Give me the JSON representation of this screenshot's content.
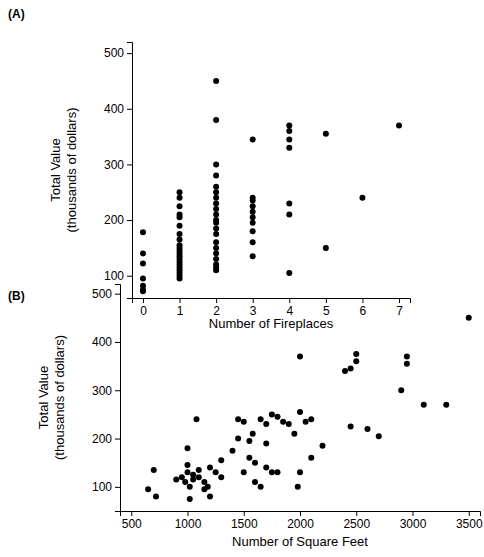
{
  "chart_data": [
    {
      "type": "scatter",
      "title": "(A)",
      "xlabel": "Number of Fireplaces",
      "ylabel": [
        "Total Value",
        "(thousands of dollars)"
      ],
      "x": [
        0,
        0,
        0,
        0,
        0,
        0,
        0,
        1,
        1,
        1,
        1,
        1,
        1,
        1,
        1,
        1,
        1,
        1,
        1,
        1,
        1,
        1,
        1,
        1,
        1,
        1,
        1,
        1,
        2,
        2,
        2,
        2,
        2,
        2,
        2,
        2,
        2,
        2,
        2,
        2,
        2,
        2,
        2,
        2,
        2,
        2,
        2,
        2,
        2,
        3,
        3,
        3,
        3,
        3,
        3,
        3,
        3,
        3,
        3,
        4,
        4,
        4,
        4,
        4,
        4,
        4,
        5,
        5,
        6,
        7
      ],
      "y": [
        178,
        140,
        122,
        95,
        82,
        75,
        72,
        250,
        240,
        225,
        210,
        205,
        190,
        175,
        165,
        155,
        150,
        145,
        140,
        135,
        130,
        125,
        120,
        115,
        110,
        105,
        100,
        95,
        450,
        380,
        300,
        280,
        260,
        250,
        240,
        230,
        220,
        210,
        200,
        195,
        185,
        175,
        160,
        150,
        140,
        130,
        120,
        115,
        110,
        345,
        240,
        235,
        225,
        215,
        205,
        195,
        180,
        160,
        135,
        370,
        360,
        345,
        330,
        230,
        210,
        105,
        355,
        150,
        240,
        370
      ],
      "xlim": [
        -0.3,
        7.3
      ],
      "ylim": [
        60,
        520
      ],
      "xticks": [
        0,
        1,
        2,
        3,
        4,
        5,
        6,
        7
      ],
      "yticks": [
        100,
        200,
        300,
        400,
        500
      ],
      "color": "#000000",
      "marker": "circle",
      "grid": false
    },
    {
      "type": "scatter",
      "title": "(B)",
      "xlabel": "Number of Square Feet",
      "ylabel": [
        "Total Value",
        "(thousands of dollars)"
      ],
      "x": [
        650,
        700,
        720,
        900,
        950,
        980,
        1000,
        1000,
        1000,
        1020,
        1020,
        1050,
        1050,
        1080,
        1100,
        1100,
        1150,
        1150,
        1180,
        1200,
        1200,
        1250,
        1300,
        1300,
        1400,
        1450,
        1450,
        1500,
        1500,
        1550,
        1550,
        1580,
        1600,
        1600,
        1650,
        1650,
        1700,
        1700,
        1700,
        1750,
        1750,
        1800,
        1800,
        1850,
        1900,
        1950,
        1980,
        2000,
        2000,
        2000,
        2050,
        2100,
        2100,
        2200,
        2400,
        2450,
        2450,
        2500,
        2500,
        2600,
        2700,
        2900,
        2950,
        2950,
        3100,
        3300,
        3500
      ],
      "y": [
        95,
        135,
        80,
        115,
        120,
        110,
        130,
        145,
        180,
        100,
        75,
        125,
        115,
        240,
        135,
        120,
        110,
        95,
        100,
        140,
        80,
        130,
        120,
        155,
        175,
        240,
        200,
        130,
        235,
        160,
        195,
        210,
        110,
        150,
        100,
        240,
        140,
        190,
        230,
        250,
        130,
        130,
        245,
        235,
        230,
        210,
        100,
        370,
        255,
        130,
        235,
        240,
        160,
        185,
        340,
        345,
        225,
        360,
        375,
        220,
        205,
        300,
        370,
        355,
        270,
        270,
        450
      ],
      "xlim": [
        400,
        3600
      ],
      "ylim": [
        50,
        520
      ],
      "xticks": [
        500,
        1000,
        1500,
        2000,
        2500,
        3000,
        3500
      ],
      "yticks": [
        100,
        200,
        300,
        400,
        500
      ],
      "color": "#000000",
      "marker": "circle",
      "grid": false
    }
  ]
}
